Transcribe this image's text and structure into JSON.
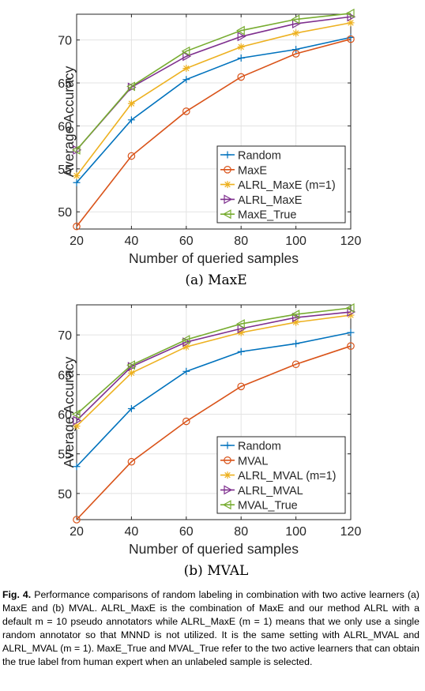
{
  "colors": {
    "random": "#0072bd",
    "maxe": "#d95319",
    "alrl_m1": "#edb120",
    "alrl": "#7e2f8e",
    "true": "#77ac30"
  },
  "chart_data": [
    {
      "type": "line",
      "subcaption": "(a) MaxE",
      "xlabel": "Number of queried samples",
      "ylabel": "Average Accuracy",
      "xlim": [
        20,
        120
      ],
      "ylim": [
        48,
        73
      ],
      "xticks": [
        20,
        40,
        60,
        80,
        100,
        120
      ],
      "yticks": [
        50,
        55,
        60,
        65,
        70
      ],
      "grid": true,
      "legend": "lower-right",
      "x": [
        20,
        40,
        60,
        80,
        100,
        120
      ],
      "series": [
        {
          "name": "Random",
          "marker": "plus",
          "color": "#0072bd",
          "values": [
            53.4,
            60.7,
            65.4,
            67.9,
            68.9,
            70.3
          ]
        },
        {
          "name": "MaxE",
          "marker": "circle",
          "color": "#d95319",
          "values": [
            48.3,
            56.5,
            61.7,
            65.7,
            68.4,
            70.1
          ]
        },
        {
          "name": "ALRL_MaxE (m=1)",
          "marker": "star",
          "color": "#edb120",
          "values": [
            54.2,
            62.6,
            66.7,
            69.2,
            70.8,
            72.0
          ]
        },
        {
          "name": "ALRL_MaxE",
          "marker": "triangle-right",
          "color": "#7e2f8e",
          "values": [
            57.2,
            64.5,
            68.1,
            70.4,
            71.9,
            72.7
          ]
        },
        {
          "name": "MaxE_True",
          "marker": "triangle-left",
          "color": "#77ac30",
          "values": [
            57.2,
            64.6,
            68.7,
            71.1,
            72.4,
            73.1
          ]
        }
      ]
    },
    {
      "type": "line",
      "subcaption": "(b) MVAL",
      "xlabel": "Number of queried samples",
      "ylabel": "Average Accuracy",
      "xlim": [
        20,
        120
      ],
      "ylim": [
        46.7,
        73.8
      ],
      "xticks": [
        20,
        40,
        60,
        80,
        100,
        120
      ],
      "yticks": [
        50,
        55,
        60,
        65,
        70
      ],
      "grid": true,
      "legend": "lower-right",
      "x": [
        20,
        40,
        60,
        80,
        100,
        120
      ],
      "series": [
        {
          "name": "Random",
          "marker": "plus",
          "color": "#0072bd",
          "values": [
            53.4,
            60.7,
            65.4,
            67.9,
            68.9,
            70.3
          ]
        },
        {
          "name": "MVAL",
          "marker": "circle",
          "color": "#d95319",
          "values": [
            46.7,
            54.0,
            59.1,
            63.5,
            66.3,
            68.6
          ]
        },
        {
          "name": "ALRL_MVAL (m=1)",
          "marker": "star",
          "color": "#edb120",
          "values": [
            58.5,
            65.2,
            68.5,
            70.3,
            71.6,
            72.5
          ]
        },
        {
          "name": "ALRL_MVAL",
          "marker": "triangle-right",
          "color": "#7e2f8e",
          "values": [
            59.2,
            66.0,
            69.1,
            70.8,
            72.2,
            72.9
          ]
        },
        {
          "name": "MVAL_True",
          "marker": "triangle-left",
          "color": "#77ac30",
          "values": [
            60.0,
            66.2,
            69.4,
            71.4,
            72.6,
            73.4
          ]
        }
      ]
    }
  ],
  "caption": {
    "label": "Fig. 4.",
    "text": "Performance comparisons of random labeling in combination with two active learners (a) MaxE and (b) MVAL. ALRL_MaxE is the combination of MaxE and our method ALRL with a default m = 10 pseudo annotators while ALRL_MaxE (m = 1) means that we only use a single random annotator so that MNND is not utilized. It is the same setting with ALRL_MVAL and ALRL_MVAL (m = 1). MaxE_True and MVAL_True refer to the two active learners that can obtain the true label from human expert when an unlabeled sample is selected."
  }
}
